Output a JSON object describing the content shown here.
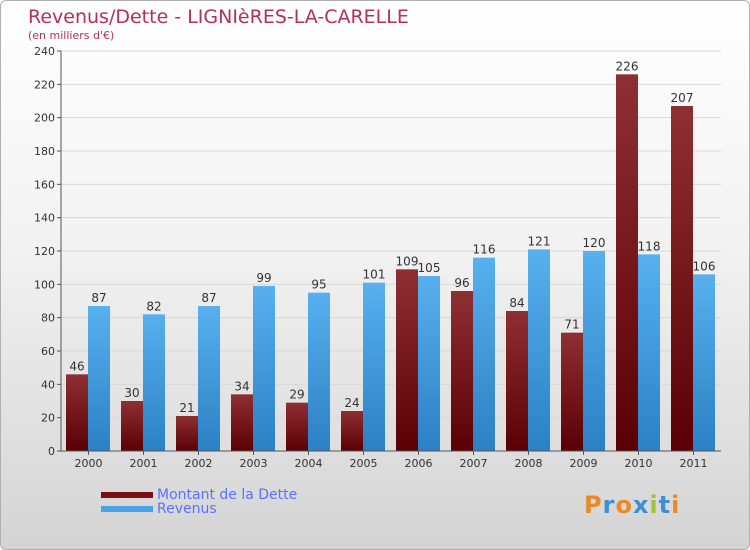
{
  "header": {
    "title": "Revenus/Dette - LIGNIèRES-LA-CARELLE",
    "subtitle": "(en milliers d'€)"
  },
  "legend": [
    {
      "label": "Montant de la Dette",
      "color": "#7a0e12"
    },
    {
      "label": "Revenus",
      "color": "#4aa3e8"
    }
  ],
  "logo": {
    "text": "Proxiti",
    "colors": [
      "#e8892a",
      "#3f8ed4",
      "#e8892a",
      "#3f8ed4",
      "#9bc43b",
      "#3f8ed4",
      "#e8892a"
    ]
  },
  "chart_data": {
    "type": "bar",
    "categories": [
      "2000",
      "2001",
      "2002",
      "2003",
      "2004",
      "2005",
      "2006",
      "2007",
      "2008",
      "2009",
      "2010",
      "2011"
    ],
    "series": [
      {
        "name": "Montant de la Dette",
        "values": [
          46,
          30,
          21,
          34,
          29,
          24,
          109,
          96,
          84,
          71,
          226,
          207
        ],
        "color": "#7a0e12"
      },
      {
        "name": "Revenus",
        "values": [
          87,
          82,
          87,
          99,
          95,
          101,
          105,
          116,
          121,
          120,
          118,
          106
        ],
        "color": "#4aa3e8"
      }
    ],
    "ylim": [
      0,
      240
    ],
    "yticks": [
      0,
      20,
      40,
      60,
      80,
      100,
      120,
      140,
      160,
      180,
      200,
      220,
      240
    ],
    "grid": true
  }
}
